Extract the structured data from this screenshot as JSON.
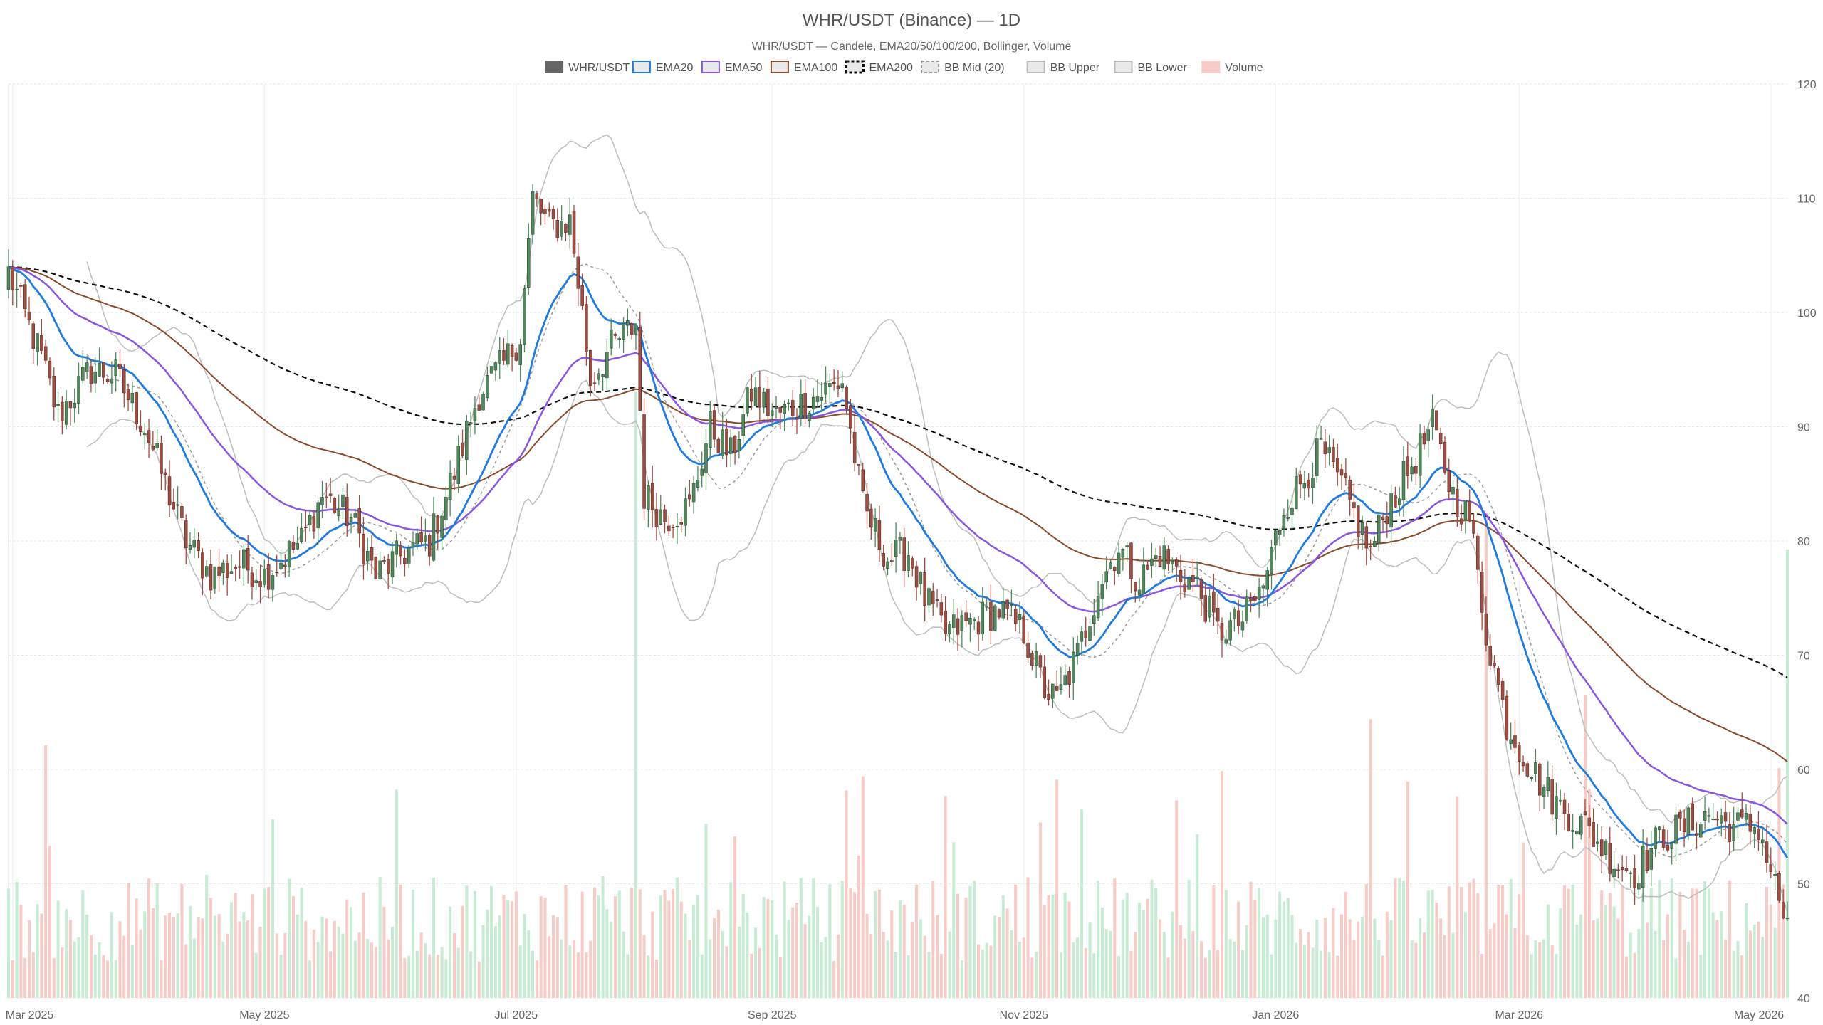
{
  "chart_data": {
    "type": "candlestick",
    "title": "WHR/USDT (Binance) — 1D",
    "subtitle": "WHR/USDT — Candele, EMA20/50/100/200, Bollinger, Volume",
    "legend_placement": "top-center",
    "legend": [
      {
        "label": "WHR/USDT",
        "color": "#666666",
        "style": "solid"
      },
      {
        "label": "EMA20",
        "color": "#1f7be0",
        "style": "solid"
      },
      {
        "label": "EMA50",
        "color": "#8a55e0",
        "style": "solid"
      },
      {
        "label": "EMA100",
        "color": "#8b4a2b",
        "style": "solid"
      },
      {
        "label": "EMA200",
        "color": "#111111",
        "style": "dashed"
      },
      {
        "label": "BB Mid (20)",
        "color": "#999999",
        "style": "dashed"
      },
      {
        "label": "BB Upper",
        "color": "#bbbbbb",
        "style": "solid"
      },
      {
        "label": "BB Lower",
        "color": "#bbbbbb",
        "style": "solid"
      },
      {
        "label": "Volume",
        "color": "#f5b7b1",
        "style": "solid"
      }
    ],
    "y_axis": {
      "min": 40,
      "max": 120,
      "position": "right",
      "ticks": [
        "40",
        "50",
        "60",
        "70",
        "80",
        "90",
        "100",
        "110",
        "120"
      ]
    },
    "x_axis": {
      "start": "2025-02-28",
      "end": "2026-05-05",
      "ticks": [
        {
          "date": "2025-03-01",
          "label": "Mar 2025"
        },
        {
          "date": "2025-05-01",
          "label": "May 2025"
        },
        {
          "date": "2025-07-01",
          "label": "Jul 2025"
        },
        {
          "date": "2025-09-01",
          "label": "Sep 2025"
        },
        {
          "date": "2025-11-01",
          "label": "Nov 2025"
        },
        {
          "date": "2026-01-01",
          "label": "Jan 2026"
        },
        {
          "date": "2026-03-01",
          "label": "Mar 2026"
        },
        {
          "date": "2026-05-01",
          "label": "May 2026"
        }
      ]
    },
    "grid": true,
    "colors": {
      "up": "#4e8a5a",
      "down": "#a24b3f",
      "vol_up": "#c7ebd3",
      "vol_down": "#f7cbc6"
    },
    "close_anchors": [
      [
        "2025-02-28",
        103.5
      ],
      [
        "2025-03-08",
        96
      ],
      [
        "2025-03-12",
        91
      ],
      [
        "2025-03-20",
        95
      ],
      [
        "2025-03-26",
        94.5
      ],
      [
        "2025-04-02",
        90
      ],
      [
        "2025-04-08",
        84
      ],
      [
        "2025-04-12",
        80
      ],
      [
        "2025-04-18",
        77
      ],
      [
        "2025-04-25",
        78
      ],
      [
        "2025-05-01",
        77
      ],
      [
        "2025-05-10",
        80
      ],
      [
        "2025-05-15",
        84
      ],
      [
        "2025-05-22",
        82
      ],
      [
        "2025-05-28",
        77
      ],
      [
        "2025-06-04",
        79
      ],
      [
        "2025-06-10",
        80
      ],
      [
        "2025-06-16",
        86
      ],
      [
        "2025-06-22",
        93
      ],
      [
        "2025-06-28",
        95.5
      ],
      [
        "2025-07-02",
        98
      ],
      [
        "2025-07-05",
        110
      ],
      [
        "2025-07-09",
        107.5
      ],
      [
        "2025-07-14",
        108
      ],
      [
        "2025-07-17",
        100
      ],
      [
        "2025-07-19",
        94
      ],
      [
        "2025-07-24",
        97
      ],
      [
        "2025-07-30",
        99
      ],
      [
        "2025-08-01",
        84
      ],
      [
        "2025-08-06",
        82
      ],
      [
        "2025-08-12",
        83
      ],
      [
        "2025-08-17",
        90
      ],
      [
        "2025-08-22",
        87.5
      ],
      [
        "2025-08-27",
        93
      ],
      [
        "2025-09-02",
        91
      ],
      [
        "2025-09-08",
        92
      ],
      [
        "2025-09-13",
        93
      ],
      [
        "2025-09-18",
        94
      ],
      [
        "2025-09-23",
        83
      ],
      [
        "2025-09-29",
        78.5
      ],
      [
        "2025-10-04",
        79
      ],
      [
        "2025-10-08",
        75
      ],
      [
        "2025-10-13",
        72
      ],
      [
        "2025-10-20",
        73
      ],
      [
        "2025-10-26",
        74
      ],
      [
        "2025-11-01",
        72
      ],
      [
        "2025-11-06",
        67
      ],
      [
        "2025-11-09",
        66
      ],
      [
        "2025-11-14",
        70
      ],
      [
        "2025-11-19",
        76
      ],
      [
        "2025-11-24",
        79.5
      ],
      [
        "2025-11-29",
        76.5
      ],
      [
        "2025-12-04",
        79
      ],
      [
        "2025-12-09",
        77
      ],
      [
        "2025-12-13",
        76
      ],
      [
        "2025-12-18",
        72
      ],
      [
        "2025-12-24",
        73
      ],
      [
        "2025-12-29",
        76
      ],
      [
        "2026-01-03",
        83
      ],
      [
        "2026-01-07",
        85
      ],
      [
        "2026-01-12",
        88
      ],
      [
        "2026-01-18",
        84
      ],
      [
        "2026-01-24",
        79
      ],
      [
        "2026-01-28",
        83
      ],
      [
        "2026-02-02",
        86
      ],
      [
        "2026-02-08",
        90
      ],
      [
        "2026-02-13",
        84
      ],
      [
        "2026-02-17",
        82
      ],
      [
        "2026-02-21",
        72
      ],
      [
        "2026-02-26",
        64
      ],
      [
        "2026-03-04",
        60
      ],
      [
        "2026-03-10",
        57
      ],
      [
        "2026-03-17",
        55
      ],
      [
        "2026-03-24",
        52
      ],
      [
        "2026-03-29",
        51
      ],
      [
        "2026-04-04",
        54
      ],
      [
        "2026-04-10",
        55
      ],
      [
        "2026-04-16",
        56
      ],
      [
        "2026-04-22",
        55
      ],
      [
        "2026-04-28",
        55
      ],
      [
        "2026-05-05",
        46
      ]
    ],
    "volume_range": [
      0,
      60
    ],
    "volume_spikes": [
      [
        "2025-07-30",
        50
      ],
      [
        "2026-02-21",
        40
      ],
      [
        "2026-05-05",
        37
      ],
      [
        "2026-03-17",
        25
      ],
      [
        "2026-01-24",
        23
      ],
      [
        "2025-11-09",
        18
      ]
    ]
  }
}
